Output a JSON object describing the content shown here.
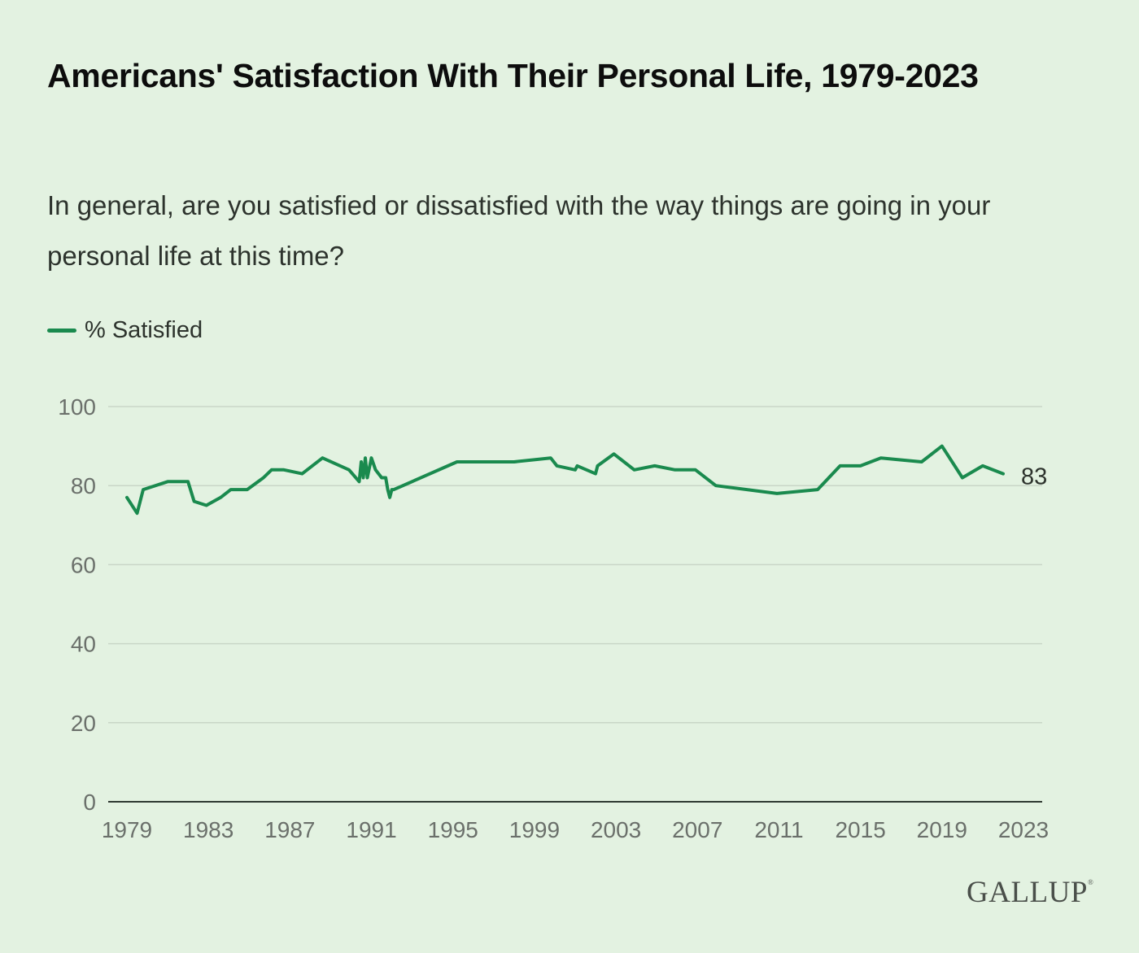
{
  "chart_data": {
    "type": "line",
    "title": "Americans' Satisfaction With Their Personal Life, 1979-2023",
    "subtitle": "In general, are you satisfied or dissatisfied with the way things are going in your personal life at this time?",
    "xlabel": "",
    "ylabel": "",
    "xlim": [
      1979,
      2023
    ],
    "ylim": [
      0,
      100
    ],
    "x_ticks": [
      "1979",
      "1983",
      "1987",
      "1991",
      "1995",
      "1999",
      "2003",
      "2007",
      "2011",
      "2015",
      "2019",
      "2023"
    ],
    "y_ticks": [
      "0",
      "20",
      "40",
      "60",
      "80",
      "100"
    ],
    "grid": true,
    "legend_position": "top-left",
    "series": [
      {
        "name": "% Satisfied",
        "color": "#1a8a4e",
        "x": [
          1979.0,
          1979.5,
          1979.8,
          1981.0,
          1982.0,
          1982.3,
          1982.9,
          1983.6,
          1984.1,
          1984.9,
          1985.7,
          1986.1,
          1986.7,
          1987.6,
          1988.6,
          1989.9,
          1990.4,
          1990.5,
          1990.6,
          1990.7,
          1990.8,
          1991.0,
          1991.2,
          1991.5,
          1991.7,
          1991.8,
          1991.9,
          1992.0,
          1992.1,
          1995.2,
          1998.0,
          1999.8,
          2000.1,
          2001.0,
          2001.1,
          2002.0,
          2002.1,
          2002.9,
          2003.9,
          2004.9,
          2005.9,
          2006.9,
          2007.9,
          2010.9,
          2012.9,
          2014.0,
          2015.0,
          2016.0,
          2018.0,
          2019.0,
          2020.0,
          2021.0,
          2022.0
        ],
        "values": [
          77,
          73,
          79,
          81,
          81,
          76,
          75,
          77,
          79,
          79,
          82,
          84,
          84,
          83,
          87,
          84,
          81,
          86,
          82,
          87,
          82,
          87,
          84,
          82,
          82,
          79,
          77,
          79,
          79,
          86,
          86,
          87,
          85,
          84,
          85,
          83,
          85,
          88,
          84,
          85,
          84,
          84,
          80,
          78,
          79,
          85,
          85,
          87,
          86,
          90,
          82,
          85,
          83
        ]
      }
    ],
    "end_label": "83"
  },
  "source": {
    "logo": "GALLUP",
    "registered_mark": "®"
  }
}
